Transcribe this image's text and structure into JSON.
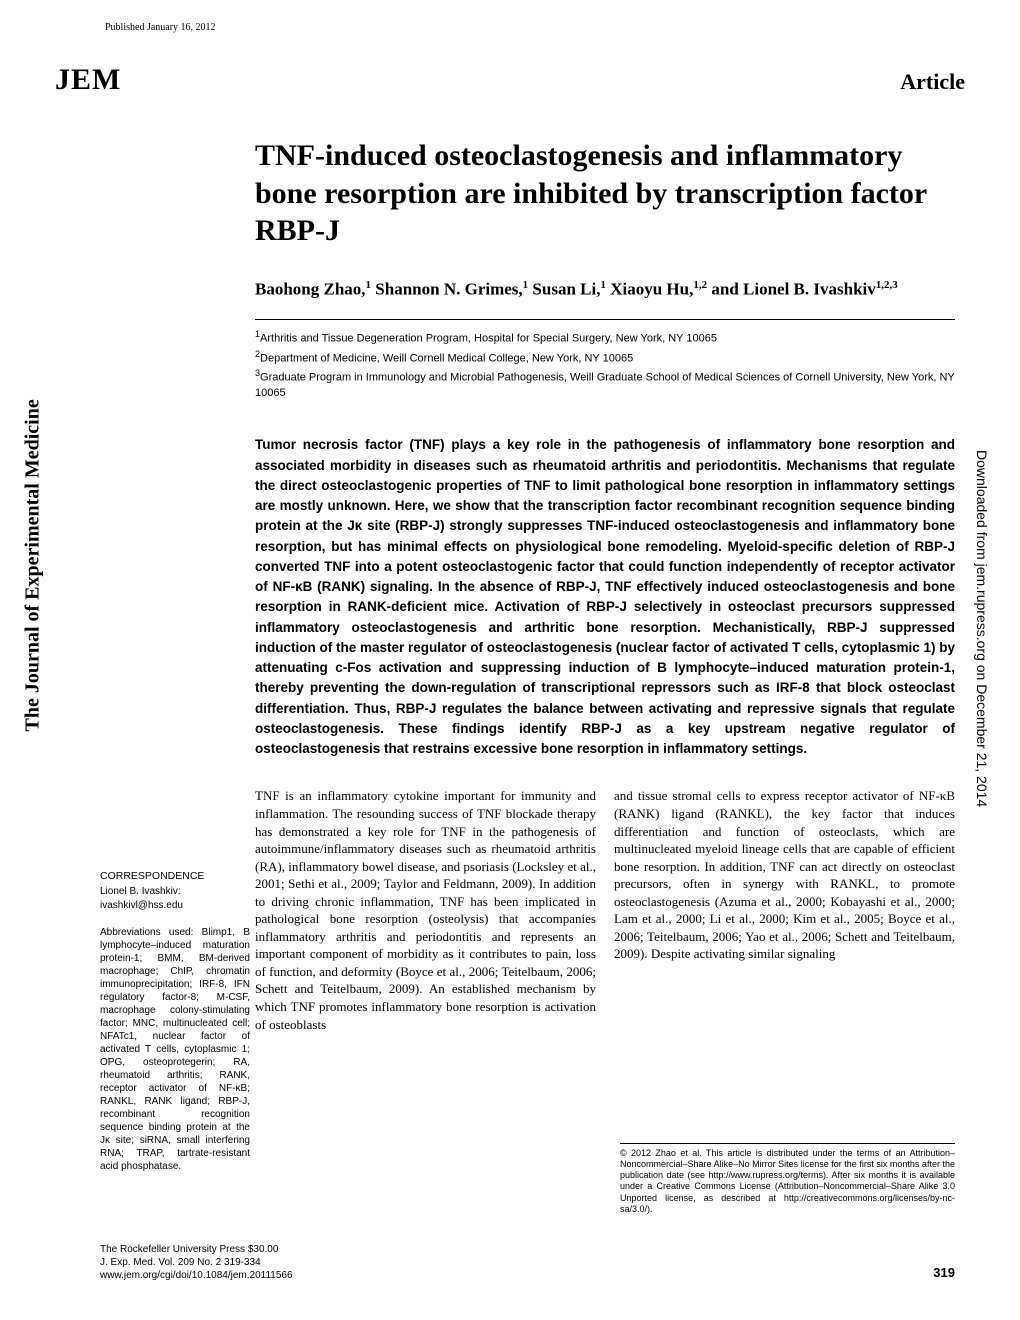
{
  "published_line": "Published January 16, 2012",
  "journal_logo": "JEM",
  "article_type": "Article",
  "side_left": "The Journal of Experimental Medicine",
  "side_right": "Downloaded from jem.rupress.org on December 21, 2014",
  "title": "TNF-induced osteoclastogenesis and inflammatory bone resorption are inhibited by transcription factor RBP-J",
  "authors_html": "Baohong Zhao,<sup>1</sup> Shannon N. Grimes,<sup>1</sup> Susan Li,<sup>1</sup> Xiaoyu Hu,<sup>1,2</sup> and Lionel B. Ivashkiv<sup>1,2,3</sup>",
  "affiliations": [
    "<sup>1</sup>Arthritis and Tissue Degeneration Program, Hospital for Special Surgery, New York, NY 10065",
    "<sup>2</sup>Department of Medicine, Weill Cornell Medical College, New York, NY 10065",
    "<sup>3</sup>Graduate Program in Immunology and Microbial Pathogenesis, Weill Graduate School of Medical Sciences of Cornell University, New York, NY 10065"
  ],
  "abstract": "Tumor necrosis factor (TNF) plays a key role in the pathogenesis of inflammatory bone resorption and associated morbidity in diseases such as rheumatoid arthritis and periodontitis. Mechanisms that regulate the direct osteoclastogenic properties of TNF to limit pathological bone resorption in inflammatory settings are mostly unknown. Here, we show that the transcription factor recombinant recognition sequence binding protein at the Jκ site (RBP-J) strongly suppresses TNF-induced osteoclastogenesis and inflammatory bone resorption, but has minimal effects on physiological bone remodeling. Myeloid-specific deletion of RBP-J converted TNF into a potent osteoclastogenic factor that could function independently of receptor activator of NF-κB (RANK) signaling. In the absence of RBP-J, TNF effectively induced osteoclastogenesis and bone resorption in RANK-deficient mice. Activation of RBP-J selectively in osteoclast precursors suppressed inflammatory osteoclastogenesis and arthritic bone resorption. Mechanistically, RBP-J suppressed induction of the master regulator of osteoclastogenesis (nuclear factor of activated T cells, cytoplasmic 1) by attenuating c-Fos activation and suppressing induction of B lymphocyte–induced maturation protein-1, thereby preventing the down-regulation of transcriptional repressors such as IRF-8 that block osteoclast differentiation. Thus, RBP-J regulates the balance between activating and repressive signals that regulate osteoclastogenesis. These findings identify RBP-J as a key upstream negative regulator of osteoclastogenesis that restrains excessive bone resorption in inflammatory settings.",
  "correspondence": {
    "heading": "CORRESPONDENCE",
    "name": "Lionel B. Ivashkiv:",
    "email": "ivashkivl@hss.edu"
  },
  "abbreviations": "Abbreviations used: Blimp1, B lymphocyte–induced maturation protein-1; BMM, BM-derived macrophage; ChIP, chromatin immunoprecipitation; IRF-8, IFN regulatory factor-8; M-CSF, macrophage colony-stimulating factor; MNC, multinucleated cell; NFATc1, nuclear factor of activated T cells, cytoplasmic 1; OPG, osteoprotegerin; RA, rheumatoid arthritis; RANK, receptor activator of NF-κB; RANKL, RANK ligand; RBP-J, recombinant recognition sequence binding protein at the Jκ site; siRNA, small interfering RNA; TRAP, tartrate-resistant acid phosphatase.",
  "body_col1": "TNF is an inflammatory cytokine important for immunity and inflammation. The resounding success of TNF blockade therapy has demonstrated a key role for TNF in the pathogenesis of autoimmune/inflammatory diseases such as rheumatoid arthritis (RA), inflammatory bowel disease, and psoriasis (Locksley et al., 2001; Sethi et al., 2009; Taylor and Feldmann, 2009). In addition to driving chronic inflammation, TNF has been implicated in pathological bone resorption (osteolysis) that accompanies inflammatory arthritis and periodontitis and represents an important component of morbidity as it contributes to pain, loss of function, and deformity (Boyce et al., 2006; Teitelbaum, 2006; Schett and Teitelbaum, 2009). An established mechanism by which TNF promotes inflammatory bone resorption is activation of osteoblasts",
  "body_col2": "and tissue stromal cells to express receptor activator of NF-κB (RANK) ligand (RANKL), the key factor that induces differentiation and function of osteoclasts, which are multinucleated myeloid lineage cells that are capable of efficient bone resorption. In addition, TNF can act directly on osteoclast precursors, often in synergy with RANKL, to promote osteoclastogenesis (Azuma et al., 2000; Kobayashi et al., 2000; Lam et al., 2000; Li et al., 2000; Kim et al., 2005; Boyce et al., 2006; Teitelbaum, 2006; Yao et al., 2006; Schett and Teitelbaum, 2009). Despite activating similar signaling",
  "license": "© 2012 Zhao et al.   This article is distributed under the terms of an Attribution–Noncommercial–Share Alike–No Mirror Sites license for the first six months after the publication date (see http://www.rupress.org/terms). After six months it is available under a Creative Commons License (Attribution–Noncommercial–Share Alike 3.0 Unported license, as described at http://creativecommons.org/licenses/by-nc-sa/3.0/).",
  "footer": {
    "line1": "The Rockefeller University Press   $30.00",
    "line2": "J. Exp. Med. Vol. 209 No. 2   319-334",
    "line3": "www.jem.org/cgi/doi/10.1084/jem.20111566",
    "page": "319"
  },
  "colors": {
    "text": "#000000",
    "background": "#ffffff"
  },
  "fonts": {
    "serif": "Georgia, Times New Roman, serif",
    "sans": "Arial, Helvetica, sans-serif"
  }
}
